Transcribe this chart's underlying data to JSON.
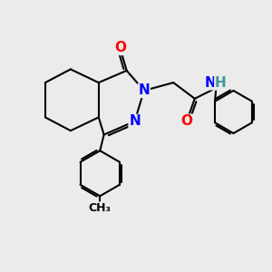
{
  "bg_color": "#ebebeb",
  "bond_color": "#000000",
  "N_color": "#0000ff",
  "O_color": "#ff0000",
  "H_color": "#3d9999",
  "lw": 1.5,
  "figsize": [
    3.0,
    3.0
  ],
  "dpi": 100,
  "xlim": [
    0,
    10
  ],
  "ylim": [
    0,
    10
  ]
}
